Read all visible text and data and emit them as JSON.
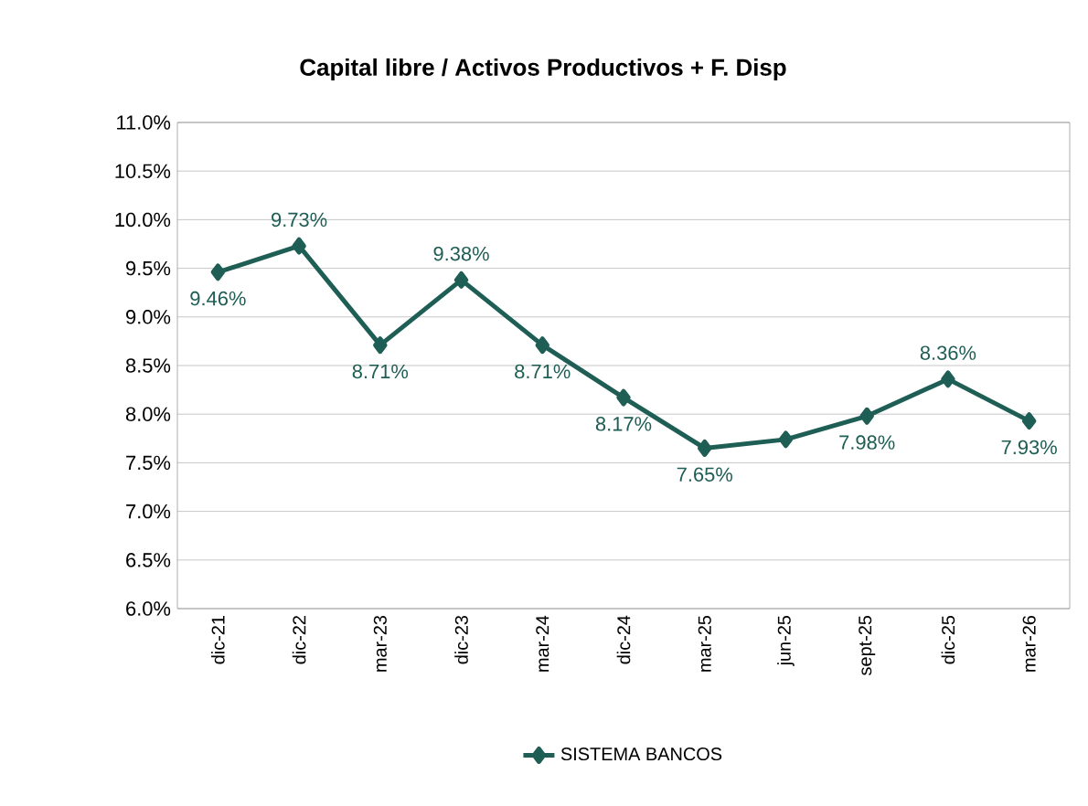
{
  "chart_data": {
    "type": "line",
    "title": "Capital libre / Activos Productivos + F. Disp",
    "categories": [
      "dic-21",
      "dic-22",
      "mar-23",
      "dic-23",
      "mar-24",
      "dic-24",
      "mar-25",
      "jun-25",
      "sept-25",
      "dic-25",
      "mar-26"
    ],
    "series": [
      {
        "name": "SISTEMA BANCOS",
        "color": "#1e5e55",
        "values": [
          9.46,
          9.73,
          8.71,
          9.38,
          8.71,
          8.17,
          7.65,
          7.74,
          7.98,
          8.36,
          7.93
        ],
        "value_labels": [
          "9.46%",
          "9.73%",
          "8.71%",
          "9.38%",
          "8.71%",
          "8.17%",
          "7.65%",
          null,
          "7.98%",
          "8.36%",
          "7.93%"
        ]
      }
    ],
    "ylim": [
      6.0,
      11.0
    ],
    "yticks": [
      {
        "value": 6.0,
        "label": "6.0%"
      },
      {
        "value": 6.5,
        "label": "6.5%"
      },
      {
        "value": 7.0,
        "label": "7.0%"
      },
      {
        "value": 7.5,
        "label": "7.5%"
      },
      {
        "value": 8.0,
        "label": "8.0%"
      },
      {
        "value": 8.5,
        "label": "8.5%"
      },
      {
        "value": 9.0,
        "label": "9.0%"
      },
      {
        "value": 9.5,
        "label": "9.5%"
      },
      {
        "value": 10.0,
        "label": "10.0%"
      },
      {
        "value": 10.5,
        "label": "10.5%"
      },
      {
        "value": 11.0,
        "label": "11.0%"
      }
    ],
    "grid": "y",
    "legend": "bottom",
    "marker": "diamond",
    "line_style": "solid"
  }
}
